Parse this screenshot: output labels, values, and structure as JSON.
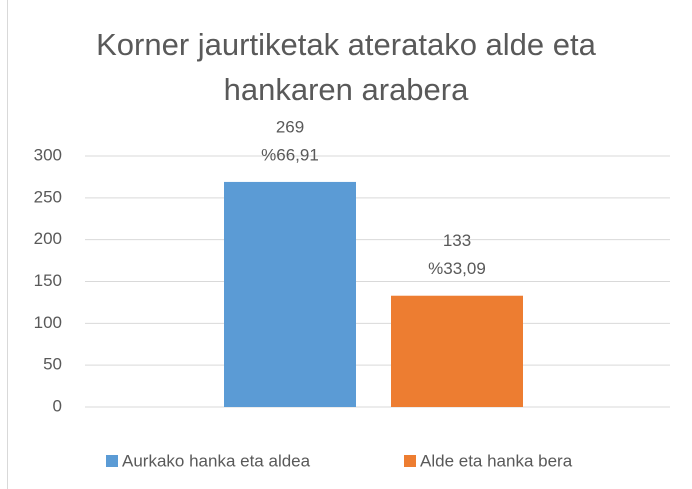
{
  "chart_data": {
    "type": "bar",
    "title": "Korner jaurtiketak ateratako alde eta hankaren arabera",
    "series": [
      {
        "name": "Aurkako hanka eta aldea",
        "color": "#5b9bd5",
        "values": [
          269
        ],
        "shares": [
          66.91
        ],
        "share_labels": [
          "%66,91"
        ]
      },
      {
        "name": "Alde eta hanka bera",
        "color": "#ed7d31",
        "values": [
          133
        ],
        "shares": [
          33.09
        ],
        "share_labels": [
          "%33,09"
        ]
      }
    ],
    "ylim": [
      0,
      300
    ],
    "yticks": [
      0,
      50,
      100,
      150,
      200,
      250,
      300
    ],
    "grid": true,
    "legend": "bottom"
  }
}
